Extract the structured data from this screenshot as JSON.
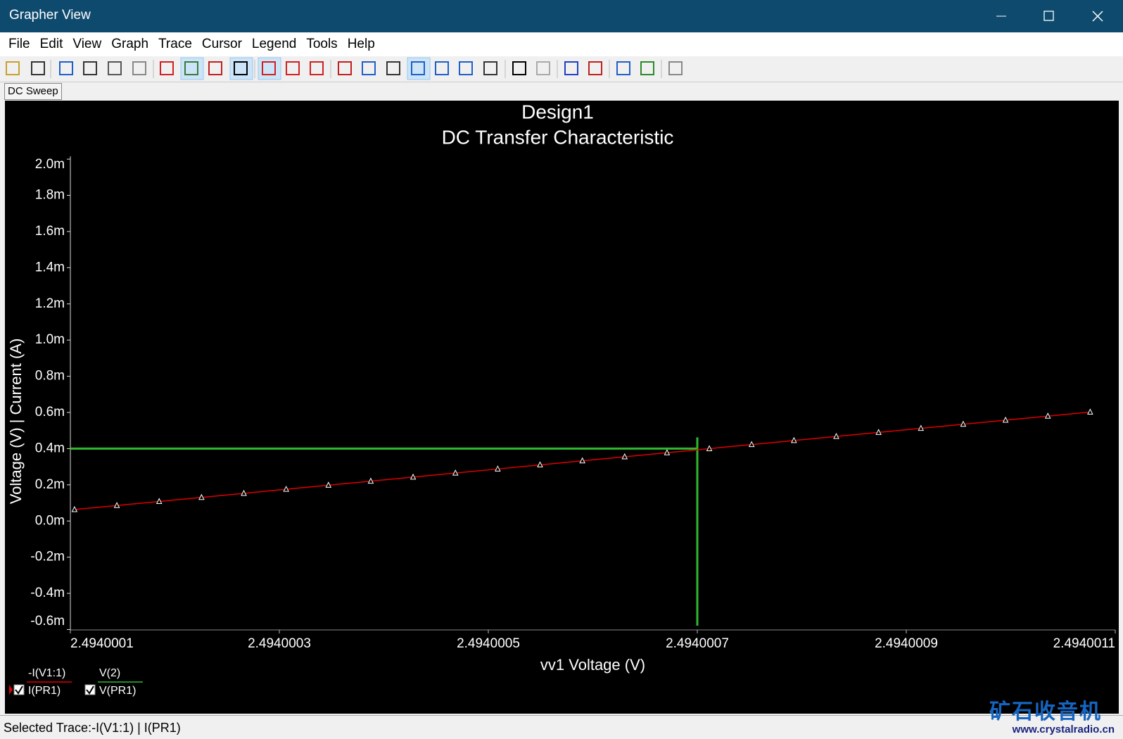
{
  "window": {
    "title": "Grapher View"
  },
  "menu": [
    "File",
    "Edit",
    "View",
    "Graph",
    "Trace",
    "Cursor",
    "Legend",
    "Tools",
    "Help"
  ],
  "tab": "DC Sweep",
  "chart_data": {
    "type": "line",
    "title": "Design1",
    "subtitle": "DC Transfer Characteristic",
    "x_label": "vv1 Voltage (V)",
    "y_label": "Voltage (V) | Current (A)",
    "xlim": [
      2.4940001,
      2.4940011
    ],
    "xticks": [
      2.4940001,
      2.4940003,
      2.4940005,
      2.4940007,
      2.4940009,
      2.4940011
    ],
    "ylim": [
      -0.000602,
      0.002016
    ],
    "yticks": [
      {
        "value": 0.002,
        "label": "2.0m"
      },
      {
        "value": 0.0018,
        "label": "1.8m"
      },
      {
        "value": 0.0016,
        "label": "1.6m"
      },
      {
        "value": 0.0014,
        "label": "1.4m"
      },
      {
        "value": 0.0012,
        "label": "1.2m"
      },
      {
        "value": 0.001,
        "label": "1.0m"
      },
      {
        "value": 0.0008,
        "label": "0.8m"
      },
      {
        "value": 0.0006,
        "label": "0.6m"
      },
      {
        "value": 0.0004,
        "label": "0.4m"
      },
      {
        "value": 0.0002,
        "label": "0.2m"
      },
      {
        "value": 0,
        "label": "0.0m"
      },
      {
        "value": -0.0002,
        "label": "-0.2m"
      },
      {
        "value": -0.0004,
        "label": "-0.4m"
      },
      {
        "value": -0.0006,
        "label": "-0.6m"
      }
    ],
    "grid": false,
    "series": [
      {
        "color": "#e00000",
        "marker": "triangle",
        "x": [
          2.494000104,
          2.4940001445,
          2.494000185,
          2.4940002255,
          2.494000266,
          2.4940003065,
          2.494000347,
          2.4940003875,
          2.494000428,
          2.4940004685,
          2.494000509,
          2.4940005495,
          2.49400059,
          2.4940006305,
          2.494000671,
          2.4940007115,
          2.494000752,
          2.4940007925,
          2.494000833,
          2.4940008735,
          2.494000914,
          2.4940009545,
          2.494000995,
          2.4940010355,
          2.494001076
        ],
        "values": [
          6.3e-05,
          8.55e-05,
          0.0001079,
          0.0001304,
          0.0001528,
          0.0001753,
          0.0001978,
          0.0002202,
          0.0002427,
          0.0002651,
          0.0002876,
          0.0003101,
          0.0003325,
          0.000355,
          0.0003774,
          0.0003999,
          0.0004224,
          0.0004448,
          0.0004673,
          0.0004897,
          0.0005122,
          0.0005347,
          0.0005571,
          0.0005796,
          0.000602
        ]
      }
    ],
    "cursor": {
      "x": 2.4940007,
      "y": 0.0004,
      "color": "#2eb82e"
    },
    "legend": [
      {
        "name": "-I(V1:1)",
        "probe": "I(PR1)",
        "color": "#e00000"
      },
      {
        "name": "V(2)",
        "probe": "V(PR1)",
        "color": "#2eb82e"
      }
    ]
  },
  "status_bar": "Selected Trace:-I(V1:1) | I(PR1)",
  "watermark": {
    "title": "矿石收音机",
    "url": "www.crystalradio.cn"
  }
}
